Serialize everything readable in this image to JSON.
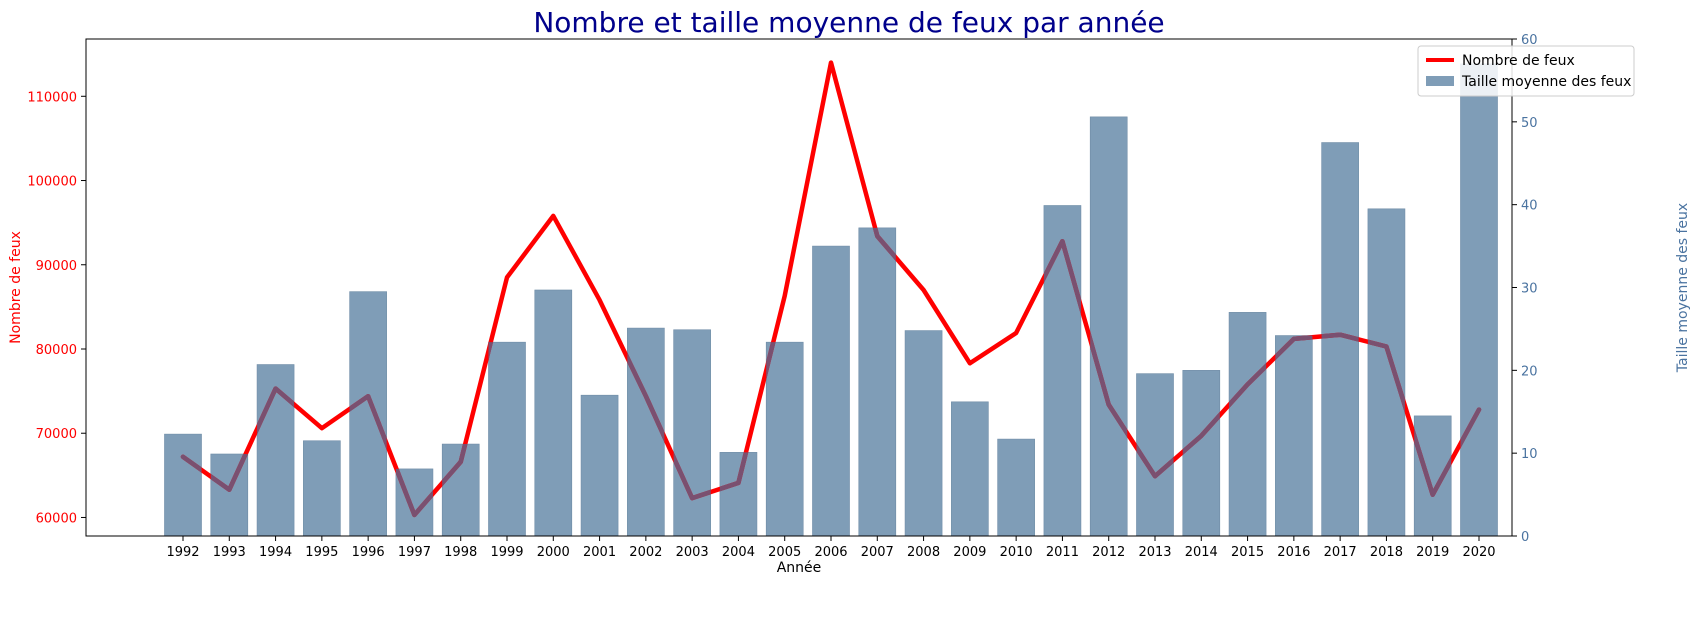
{
  "chart_data": {
    "type": "bar+line",
    "title": "Nombre et taille moyenne de feux par année",
    "xlabel": "Année",
    "ylabel_left": "Nombre de feux",
    "ylabel_right": "Taille moyenne des feux",
    "categories": [
      "1992",
      "1993",
      "1994",
      "1995",
      "1996",
      "1997",
      "1998",
      "1999",
      "2000",
      "2001",
      "2002",
      "2003",
      "2004",
      "2005",
      "2006",
      "2007",
      "2008",
      "2009",
      "2010",
      "2011",
      "2012",
      "2013",
      "2014",
      "2015",
      "2016",
      "2017",
      "2018",
      "2019",
      "2020"
    ],
    "series": [
      {
        "name": "Nombre de feux",
        "type": "line",
        "axis": "left",
        "color": "#ff0000",
        "values": [
          67200,
          63300,
          75300,
          70600,
          74400,
          60300,
          66600,
          88500,
          95800,
          85800,
          74400,
          62300,
          64100,
          86300,
          114000,
          93400,
          87000,
          78300,
          81900,
          92800,
          73400,
          64900,
          69700,
          75800,
          81200,
          81700,
          80300,
          62700,
          72800
        ]
      },
      {
        "name": "Taille moyenne des feux",
        "type": "bar",
        "axis": "right",
        "color": "#7f9db7",
        "values": [
          12.3,
          9.9,
          20.7,
          11.5,
          29.5,
          8.1,
          11.1,
          23.4,
          29.7,
          17.0,
          25.1,
          24.9,
          10.1,
          23.4,
          35.0,
          37.2,
          24.8,
          16.2,
          11.7,
          39.9,
          50.6,
          19.6,
          20.0,
          27.0,
          24.2,
          47.5,
          39.5,
          14.5,
          57.0
        ]
      }
    ],
    "y_left": {
      "min": 57800,
      "max": 116800,
      "ticks": [
        60000,
        70000,
        80000,
        90000,
        100000,
        110000
      ],
      "color": "#ff0000"
    },
    "y_right": {
      "min": 0,
      "max": 60,
      "ticks": [
        0,
        10,
        20,
        30,
        40,
        50,
        60
      ],
      "color": "#4a73a0"
    },
    "legend": {
      "placement": "top-right",
      "entries": [
        "Nombre de feux",
        "Taille moyenne des feux"
      ]
    },
    "grid": false,
    "title_color": "#00008b"
  }
}
